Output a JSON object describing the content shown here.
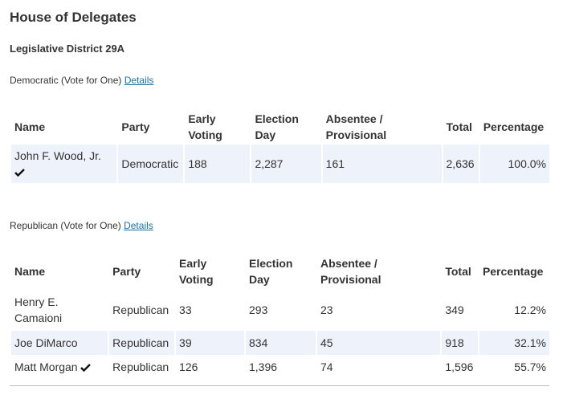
{
  "page": {
    "title": "House of Delegates",
    "district": "Legislative District 29A"
  },
  "democratic": {
    "heading": "Democratic (Vote for One)",
    "details_link": "Details",
    "columns": {
      "name": "Name",
      "party": "Party",
      "early_1": "Early",
      "early_2": "Voting",
      "eday_1": "Election",
      "eday_2": "Day",
      "abs_1": "Absentee /",
      "abs_2": "Provisional",
      "total": "Total",
      "pct": "Percentage"
    },
    "rows": [
      {
        "name": "John F. Wood, Jr.",
        "winner": true,
        "party": "Democratic",
        "early": "188",
        "eday": "2,287",
        "absentee": "161",
        "total": "2,636",
        "pct": "100.0%"
      }
    ]
  },
  "republican": {
    "heading": "Republican (Vote for One)",
    "details_link": "Details",
    "columns": {
      "name": "Name",
      "party": "Party",
      "early_1": "Early",
      "early_2": "Voting",
      "eday_1": "Election",
      "eday_2": "Day",
      "abs_1": "Absentee /",
      "abs_2": "Provisional",
      "total": "Total",
      "pct": "Percentage"
    },
    "rows": [
      {
        "name_1": "Henry E.",
        "name_2": "Camaioni",
        "winner": false,
        "party": "Republican",
        "early": "33",
        "eday": "293",
        "absentee": "23",
        "total": "349",
        "pct": "12.2%"
      },
      {
        "name": "Joe DiMarco",
        "winner": false,
        "party": "Republican",
        "early": "39",
        "eday": "834",
        "absentee": "45",
        "total": "918",
        "pct": "32.1%"
      },
      {
        "name": "Matt Morgan",
        "winner": true,
        "party": "Republican",
        "early": "126",
        "eday": "1,396",
        "absentee": "74",
        "total": "1,596",
        "pct": "55.7%"
      }
    ]
  },
  "icons": {
    "winner": "checkmark-icon"
  },
  "colors": {
    "row_shade": "#eef2fa",
    "link": "#1f6fa3",
    "text": "#333333"
  }
}
